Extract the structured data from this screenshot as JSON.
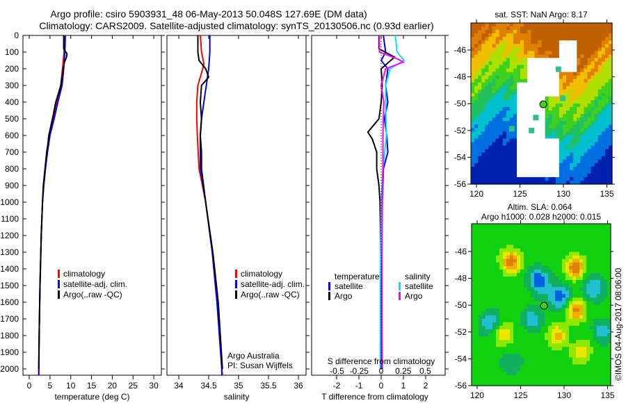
{
  "title_line1": "Argo profile: csiro 5903931_48 06-May-2013 50.048S 127.69E (DM data)",
  "title_line2": "Climatology: CARS2009. Satellite-adjusted climatology: synTS_20130506.nc (0.93d earlier)",
  "colors": {
    "climatology": "#ff0000",
    "satellite": "#0000ff",
    "argo": "#000000",
    "sal_satellite": "#00e5ff",
    "sal_argo": "#ff00ff"
  },
  "chart_data": [
    {
      "type": "line",
      "xlabel": "temperature (deg C)",
      "ylabel": "",
      "xlim": [
        -1,
        31
      ],
      "ylim": [
        2060,
        0
      ],
      "xticks": [
        "0",
        "5",
        "10",
        "15",
        "20",
        "25",
        "30"
      ],
      "yticks": [
        "0",
        "100",
        "200",
        "300",
        "400",
        "500",
        "600",
        "700",
        "800",
        "900",
        "1000",
        "1100",
        "1200",
        "1300",
        "1400",
        "1500",
        "1600",
        "1700",
        "1800",
        "1900",
        "2000"
      ],
      "legend": [
        "climatology",
        "satellite-adj. clim.",
        "Argo(..raw -QC)"
      ],
      "series": [
        {
          "name": "climatology",
          "depth": [
            0,
            100,
            200,
            300,
            400,
            500,
            600,
            700,
            800,
            900,
            1000,
            1200,
            1500,
            1800,
            2040
          ],
          "values": [
            8.5,
            8.4,
            8.0,
            7.6,
            6.6,
            5.8,
            4.9,
            4.3,
            3.9,
            3.5,
            3.2,
            2.9,
            2.6,
            2.4,
            2.3
          ]
        },
        {
          "name": "satellite-adj. clim.",
          "depth": [
            0,
            100,
            200,
            300,
            400,
            500,
            600,
            700,
            800,
            900,
            1000,
            1200,
            1500,
            1800,
            2040
          ],
          "values": [
            8.7,
            8.6,
            8.3,
            7.9,
            6.9,
            6.0,
            5.0,
            4.4,
            3.9,
            3.5,
            3.2,
            2.9,
            2.6,
            2.4,
            2.3
          ]
        },
        {
          "name": "Argo(..raw -QC)",
          "depth": [
            0,
            80,
            110,
            130,
            160,
            200,
            300,
            400,
            500,
            600,
            650,
            700,
            800,
            900,
            1000,
            1200,
            1500,
            1800,
            2000
          ],
          "values": [
            8.3,
            8.3,
            9.1,
            9.0,
            8.5,
            8.2,
            7.6,
            6.4,
            5.6,
            4.7,
            4.5,
            4.2,
            3.8,
            3.4,
            3.2,
            2.9,
            2.6,
            2.4,
            2.3
          ]
        }
      ]
    },
    {
      "type": "line",
      "xlabel": "salinity",
      "xlim": [
        33.8,
        36.1
      ],
      "ylim": [
        2060,
        0
      ],
      "xticks": [
        "34",
        "34.5",
        "35",
        "35.5",
        "36"
      ],
      "legend": [
        "climatology",
        "satellite-adj. clim.",
        "Argo(..raw -QC)"
      ],
      "annotation": [
        "Argo Australia",
        "PI: Susan Wijffels"
      ],
      "series": [
        {
          "name": "climatology",
          "depth": [
            0,
            100,
            170,
            200,
            300,
            400,
            500,
            600,
            800,
            1000,
            1300,
            1600,
            2000,
            2040
          ],
          "values": [
            34.36,
            34.38,
            34.42,
            34.4,
            34.32,
            34.3,
            34.3,
            34.31,
            34.34,
            34.45,
            34.56,
            34.64,
            34.72,
            34.73
          ]
        },
        {
          "name": "satellite-adj. clim.",
          "depth": [
            0,
            100,
            200,
            300,
            400,
            500,
            600,
            800,
            1000,
            1300,
            1600,
            2000,
            2040
          ],
          "values": [
            34.52,
            34.52,
            34.5,
            34.46,
            34.42,
            34.38,
            34.36,
            34.36,
            34.45,
            34.56,
            34.64,
            34.72,
            34.72
          ]
        },
        {
          "name": "Argo(..raw -QC)",
          "depth": [
            0,
            100,
            150,
            200,
            250,
            300,
            400,
            500,
            600,
            700,
            800,
            1000,
            1300,
            1600,
            2000
          ],
          "values": [
            34.32,
            34.32,
            34.34,
            34.45,
            34.5,
            34.38,
            34.36,
            34.38,
            34.36,
            34.38,
            34.38,
            34.45,
            34.57,
            34.66,
            34.73
          ]
        }
      ]
    },
    {
      "type": "line",
      "xlabel": "T difference from climatology",
      "xlabel2": "S difference from climatology",
      "xlim": [
        -2.8,
        2.8
      ],
      "ylim": [
        2060,
        0
      ],
      "xticks": [
        "-2",
        "-1",
        "0",
        "1",
        "2"
      ],
      "xticks2": [
        "-0.5",
        "-0.25",
        "0",
        "0.25",
        "0.5"
      ],
      "legend_headers": [
        "temperature",
        "salinity"
      ],
      "legend": [
        "satellite",
        "Argo",
        "satellite",
        "Argo"
      ],
      "series": [
        {
          "name": "temperature satellite",
          "depth": [
            0,
            100,
            150,
            200,
            300,
            400,
            500,
            600,
            700,
            800,
            1000,
            1500,
            2000
          ],
          "values": [
            0.1,
            0.2,
            0.0,
            0.3,
            0.2,
            0.3,
            0.15,
            0.25,
            0.3,
            0.1,
            0.05,
            0.02,
            0.05
          ]
        },
        {
          "name": "temperature Argo",
          "depth": [
            0,
            80,
            130,
            200,
            300,
            400,
            500,
            580,
            620,
            700,
            800,
            900,
            1000,
            1500,
            2000
          ],
          "values": [
            -0.1,
            -0.1,
            0.6,
            0.0,
            0.05,
            0.0,
            -0.1,
            -0.6,
            -0.4,
            -0.2,
            -0.2,
            -0.1,
            -0.05,
            0.0,
            0.0
          ]
        },
        {
          "name": "salinity satellite",
          "depth": [
            0,
            100,
            150,
            200,
            300,
            400,
            600,
            800,
            1000,
            1500,
            2000
          ],
          "values": [
            0.16,
            0.18,
            0.26,
            0.1,
            0.05,
            0.05,
            0.06,
            0.02,
            0.0,
            -0.01,
            -0.01
          ]
        },
        {
          "name": "salinity Argo",
          "depth": [
            0,
            100,
            140,
            160,
            200,
            300,
            400,
            600,
            800,
            1000,
            1500,
            2000
          ],
          "values": [
            -0.02,
            -0.02,
            0.18,
            0.25,
            0.05,
            0.0,
            0.03,
            0.02,
            0.02,
            0.01,
            0.01,
            0.01
          ]
        }
      ]
    }
  ],
  "map1": {
    "title": "sat. SST: NaN Argo: 8.17",
    "yticks": [
      "-46",
      "-48",
      "-50",
      "-52",
      "-54",
      "-56"
    ],
    "xticks": [
      "120",
      "125",
      "130",
      "135"
    ]
  },
  "map2": {
    "title1": "Altim. SLA: 0.064",
    "title2": "Argo h1000: 0.028 h2000: 0.015",
    "yticks": [
      "-46",
      "-48",
      "-50",
      "-52",
      "-54",
      "-56"
    ],
    "xticks": [
      "120",
      "125",
      "130",
      "135"
    ],
    "credit": "©IMOS 04-Aug-2017 08:06:00"
  }
}
